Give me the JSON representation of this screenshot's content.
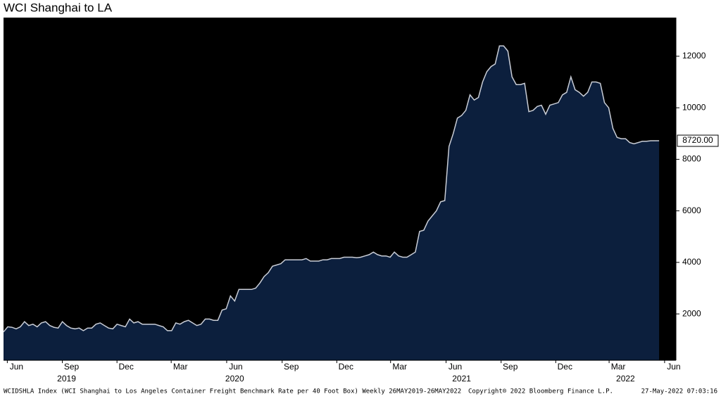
{
  "chart_data": {
    "type": "area",
    "title": "WCI Shanghai to LA",
    "footer": "WCIDSHLA Index (WCI Shanghai to Los Angeles Container Freight Benchmark Rate per 40 Foot Box)  Weekly 26MAY2019-26MAY2022",
    "copyright": "Copyright® 2022 Bloomberg Finance L.P.",
    "timestamp": "27-May-2022 07:03:16",
    "last_value_label": "8720.00",
    "line_color": "#c9cdd6",
    "fill_color": "#0c1f3d",
    "background": "#000000",
    "xlim": [
      0,
      160
    ],
    "xticks": [
      {
        "value": 0.9,
        "label": "Jun"
      },
      {
        "value": 14.0,
        "label": "Sep"
      },
      {
        "value": 27.0,
        "label": "Dec"
      },
      {
        "value": 39.9,
        "label": "Mar"
      },
      {
        "value": 53.1,
        "label": "Jun"
      },
      {
        "value": 66.3,
        "label": "Sep"
      },
      {
        "value": 79.3,
        "label": "Dec"
      },
      {
        "value": 92.1,
        "label": "Mar"
      },
      {
        "value": 105.3,
        "label": "Jun"
      },
      {
        "value": 118.4,
        "label": "Sep"
      },
      {
        "value": 131.4,
        "label": "Dec"
      },
      {
        "value": 144.1,
        "label": "Mar"
      },
      {
        "value": 157.3,
        "label": "Jun"
      }
    ],
    "year_labels": [
      {
        "value": 15,
        "label": "2019"
      },
      {
        "value": 55,
        "label": "2020"
      },
      {
        "value": 109,
        "label": "2021"
      },
      {
        "value": 148,
        "label": "2022"
      }
    ],
    "ylim": [
      200,
      13500
    ],
    "yticks": [
      2000,
      4000,
      6000,
      8000,
      10000,
      12000
    ],
    "values": [
      1300,
      1500,
      1480,
      1420,
      1500,
      1700,
      1550,
      1600,
      1500,
      1650,
      1700,
      1550,
      1480,
      1450,
      1700,
      1550,
      1450,
      1420,
      1450,
      1350,
      1450,
      1450,
      1600,
      1650,
      1550,
      1450,
      1420,
      1600,
      1550,
      1500,
      1800,
      1650,
      1700,
      1600,
      1600,
      1600,
      1600,
      1550,
      1500,
      1350,
      1350,
      1650,
      1600,
      1700,
      1750,
      1650,
      1550,
      1600,
      1800,
      1800,
      1750,
      1750,
      2150,
      2200,
      2700,
      2500,
      2950,
      2950,
      2950,
      2950,
      3000,
      3200,
      3450,
      3600,
      3850,
      3900,
      3950,
      4100,
      4100,
      4100,
      4100,
      4100,
      4150,
      4050,
      4050,
      4050,
      4100,
      4100,
      4150,
      4150,
      4150,
      4200,
      4200,
      4200,
      4180,
      4200,
      4250,
      4300,
      4400,
      4300,
      4250,
      4250,
      4200,
      4400,
      4250,
      4200,
      4200,
      4300,
      4400,
      5200,
      5250,
      5600,
      5800,
      6000,
      6350,
      6400,
      8500,
      9000,
      9600,
      9700,
      9900,
      10500,
      10300,
      10400,
      11000,
      11400,
      11600,
      11700,
      12400,
      12400,
      12200,
      11200,
      10900,
      10900,
      10950,
      9850,
      9900,
      10050,
      10100,
      9750,
      10100,
      10150,
      10200,
      10500,
      10600,
      11200,
      10700,
      10600,
      10450,
      10600,
      11000,
      11000,
      10950,
      10200,
      10000,
      9200,
      8850,
      8800,
      8800,
      8650,
      8600,
      8650,
      8700,
      8700,
      8720,
      8720,
      8720
    ]
  }
}
